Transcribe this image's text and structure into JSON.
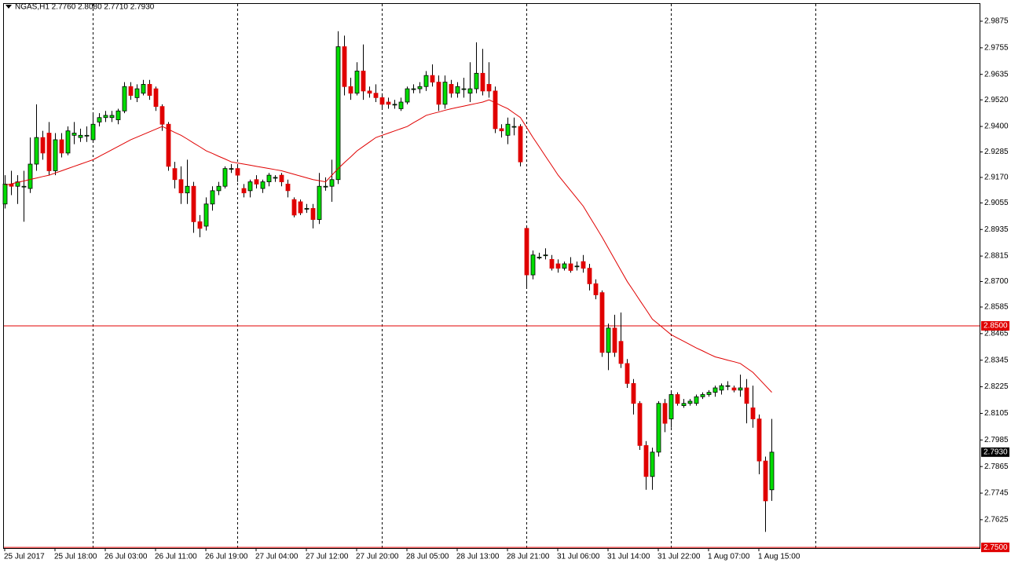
{
  "chart_data": {
    "type": "candlestick",
    "title": "NGAS,H1  2.7760 2.8080 2.7710 2.7930",
    "categories": [
      "25 Jul 2017",
      null,
      null,
      null,
      null,
      null,
      null,
      null,
      "25 Jul 18:00",
      null,
      null,
      null,
      null,
      null,
      null,
      null,
      "26 Jul 03:00",
      null,
      null,
      null,
      null,
      null,
      null,
      null,
      "26 Jul 11:00",
      null,
      null,
      null,
      null,
      null,
      null,
      null,
      "26 Jul 19:00",
      null,
      null,
      null,
      null,
      null,
      null,
      null,
      "27 Jul 04:00",
      null,
      null,
      null,
      null,
      null,
      null,
      null,
      "27 Jul 12:00",
      null,
      null,
      null,
      null,
      null,
      null,
      null,
      "27 Jul 20:00",
      null,
      null,
      null,
      null,
      null,
      null,
      null,
      "28 Jul 05:00",
      null,
      null,
      null,
      null,
      null,
      null,
      null,
      "28 Jul 13:00",
      null,
      null,
      null,
      null,
      null,
      null,
      null,
      "28 Jul 21:00",
      null,
      null,
      null,
      null,
      null,
      null,
      null,
      "31 Jul 06:00",
      null,
      null,
      null,
      null,
      null,
      null,
      null,
      "31 Jul 14:00",
      null,
      null,
      null,
      null,
      null,
      null,
      null,
      "31 Jul 22:00",
      null,
      null,
      null,
      null,
      null,
      null,
      null,
      "1 Aug 07:00",
      null,
      null,
      null,
      null,
      null,
      null,
      null,
      "1 Aug 15:00",
      null,
      null
    ],
    "open": [
      2.905,
      2.914,
      2.913,
      2.913,
      2.912,
      2.923,
      2.935,
      2.937,
      2.92,
      2.934,
      2.928,
      2.936,
      2.935,
      2.936,
      2.934,
      2.942,
      2.944,
      2.944,
      2.943,
      2.947,
      2.958,
      2.953,
      2.955,
      2.959,
      2.957,
      2.949,
      2.941,
      2.921,
      2.916,
      2.91,
      2.913,
      2.897,
      2.895,
      2.905,
      2.911,
      2.913,
      2.921,
      2.921,
      2.912,
      2.911,
      2.916,
      2.912,
      2.915,
      2.917,
      2.918,
      2.914,
      2.907,
      2.906,
      2.903,
      2.903,
      2.898,
      2.913,
      2.913,
      2.916,
      2.976,
      2.958,
      2.955,
      2.965,
      2.956,
      2.955,
      2.953,
      2.951,
      2.95,
      2.948,
      2.951,
      2.957,
      2.957,
      2.958,
      2.963,
      2.96,
      2.95,
      2.959,
      2.955,
      2.957,
      2.955,
      2.957,
      2.964,
      2.959,
      2.956,
      2.939,
      2.936,
      2.94,
      2.94,
      2.894,
      2.873,
      2.881,
      2.882,
      2.88,
      2.878,
      2.876,
      2.878,
      2.877,
      2.879,
      2.876,
      2.869,
      2.865,
      2.838,
      2.849,
      2.843,
      2.833,
      2.824,
      2.815,
      2.796,
      2.782,
      2.793,
      2.815,
      2.808,
      2.819,
      2.814,
      2.815,
      2.815,
      2.818,
      2.819,
      2.82,
      2.821,
      2.823,
      2.822,
      2.821,
      2.822,
      2.813,
      2.808,
      2.789,
      2.776
    ],
    "high": [
      2.918,
      2.92,
      2.918,
      2.92,
      2.935,
      2.95,
      2.938,
      2.942,
      2.937,
      2.937,
      2.94,
      2.942,
      2.939,
      2.94,
      2.946,
      2.946,
      2.947,
      2.947,
      2.948,
      2.96,
      2.96,
      2.959,
      2.961,
      2.961,
      2.958,
      2.95,
      2.942,
      2.924,
      2.922,
      2.925,
      2.915,
      2.9,
      2.908,
      2.913,
      2.915,
      2.922,
      2.923,
      2.922,
      2.914,
      2.916,
      2.918,
      2.916,
      2.919,
      2.918,
      2.919,
      2.916,
      2.908,
      2.907,
      2.905,
      2.905,
      2.919,
      2.917,
      2.925,
      2.983,
      2.981,
      2.962,
      2.969,
      2.977,
      2.958,
      2.959,
      2.955,
      2.953,
      2.952,
      2.953,
      2.958,
      2.959,
      2.96,
      2.965,
      2.968,
      2.963,
      2.963,
      2.961,
      2.96,
      2.962,
      2.969,
      2.978,
      2.975,
      2.969,
      2.958,
      2.941,
      2.944,
      2.944,
      2.941,
      2.895,
      2.884,
      2.883,
      2.885,
      2.882,
      2.88,
      2.879,
      2.881,
      2.879,
      2.882,
      2.878,
      2.871,
      2.866,
      2.851,
      2.855,
      2.856,
      2.835,
      2.826,
      2.816,
      2.798,
      2.795,
      2.816,
      2.817,
      2.82,
      2.82,
      2.817,
      2.817,
      2.819,
      2.82,
      2.821,
      2.823,
      2.824,
      2.825,
      2.823,
      2.828,
      2.826,
      2.823,
      2.81,
      2.791,
      2.808
    ],
    "low": [
      2.903,
      2.909,
      2.905,
      2.897,
      2.91,
      2.92,
      2.925,
      2.918,
      2.918,
      2.926,
      2.927,
      2.932,
      2.933,
      2.933,
      2.933,
      2.94,
      2.942,
      2.942,
      2.941,
      2.946,
      2.952,
      2.951,
      2.954,
      2.952,
      2.947,
      2.938,
      2.92,
      2.912,
      2.905,
      2.905,
      2.892,
      2.89,
      2.893,
      2.902,
      2.909,
      2.912,
      2.919,
      2.915,
      2.908,
      2.908,
      2.912,
      2.91,
      2.913,
      2.915,
      2.913,
      2.908,
      2.899,
      2.9,
      2.901,
      2.894,
      2.896,
      2.911,
      2.906,
      2.914,
      2.954,
      2.952,
      2.954,
      2.952,
      2.953,
      2.951,
      2.948,
      2.948,
      2.948,
      2.947,
      2.95,
      2.955,
      2.955,
      2.956,
      2.958,
      2.947,
      2.948,
      2.953,
      2.953,
      2.953,
      2.951,
      2.955,
      2.954,
      2.953,
      2.937,
      2.935,
      2.932,
      2.936,
      2.922,
      2.867,
      2.871,
      2.88,
      2.88,
      2.875,
      2.874,
      2.875,
      2.874,
      2.875,
      2.874,
      2.866,
      2.862,
      2.836,
      2.83,
      2.836,
      2.831,
      2.822,
      2.81,
      2.794,
      2.776,
      2.776,
      2.791,
      2.802,
      2.804,
      2.814,
      2.813,
      2.814,
      2.814,
      2.817,
      2.818,
      2.818,
      2.819,
      2.821,
      2.82,
      2.818,
      2.806,
      2.804,
      2.783,
      2.757,
      2.771
    ],
    "close": [
      2.914,
      2.913,
      2.915,
      2.913,
      2.923,
      2.935,
      2.928,
      2.92,
      2.934,
      2.928,
      2.938,
      2.937,
      2.936,
      2.936,
      2.941,
      2.944,
      2.945,
      2.945,
      2.947,
      2.958,
      2.954,
      2.957,
      2.959,
      2.954,
      2.949,
      2.941,
      2.922,
      2.916,
      2.91,
      2.913,
      2.897,
      2.894,
      2.905,
      2.911,
      2.913,
      2.921,
      2.921,
      2.918,
      2.91,
      2.915,
      2.914,
      2.915,
      2.918,
      2.917,
      2.915,
      2.911,
      2.9,
      2.901,
      2.903,
      2.898,
      2.913,
      2.913,
      2.916,
      2.976,
      2.958,
      2.955,
      2.965,
      2.956,
      2.955,
      2.953,
      2.95,
      2.95,
      2.95,
      2.951,
      2.957,
      2.957,
      2.958,
      2.963,
      2.96,
      2.95,
      2.96,
      2.955,
      2.958,
      2.957,
      2.957,
      2.964,
      2.956,
      2.956,
      2.939,
      2.938,
      2.941,
      2.94,
      2.924,
      2.873,
      2.882,
      2.881,
      2.882,
      2.876,
      2.876,
      2.878,
      2.875,
      2.877,
      2.876,
      2.869,
      2.864,
      2.838,
      2.849,
      2.838,
      2.833,
      2.824,
      2.815,
      2.796,
      2.782,
      2.793,
      2.815,
      2.806,
      2.819,
      2.815,
      2.815,
      2.816,
      2.818,
      2.819,
      2.82,
      2.822,
      2.823,
      2.823,
      2.821,
      2.822,
      2.815,
      2.808,
      2.789,
      2.771,
      2.793
    ],
    "up_color": "#00dd00",
    "down_color": "#e00000",
    "moving_average": {
      "color": "#e00000",
      "values": [
        2.9135,
        2.9141,
        2.9148,
        2.9154,
        2.9161,
        2.9167,
        2.9174,
        2.918,
        2.919,
        2.92,
        2.921,
        2.922,
        2.923,
        2.924,
        2.925,
        2.9265,
        2.928,
        2.9295,
        2.931,
        2.9325,
        2.934,
        2.9352,
        2.9364,
        2.9376,
        2.9388,
        2.94,
        2.9387,
        2.9373,
        2.936,
        2.9343,
        2.9325,
        2.9308,
        2.929,
        2.9278,
        2.9265,
        2.9253,
        2.924,
        2.9235,
        2.923,
        2.9225,
        2.922,
        2.9215,
        2.921,
        2.9205,
        2.92,
        2.9192,
        2.9184,
        2.9176,
        2.9168,
        2.916,
        2.9155,
        2.915,
        2.918,
        2.921,
        2.9237,
        2.9263,
        2.929,
        2.931,
        2.933,
        2.935,
        2.936,
        2.937,
        2.938,
        2.939,
        2.94,
        2.9417,
        2.9433,
        2.945,
        2.9458,
        2.9465,
        2.9473,
        2.948,
        2.9486,
        2.9492,
        2.9498,
        2.9504,
        2.951,
        2.952,
        2.9507,
        2.9493,
        2.948,
        2.946,
        2.944,
        2.9395,
        2.935,
        2.9308,
        2.9265,
        2.9223,
        2.918,
        2.9145,
        2.911,
        2.9075,
        2.904,
        2.8993,
        2.8947,
        2.89,
        2.885,
        2.88,
        2.875,
        2.87,
        2.8658,
        2.8615,
        2.8573,
        2.853,
        2.8507,
        2.8483,
        2.846,
        2.8445,
        2.843,
        2.8415,
        2.84,
        2.8387,
        2.8373,
        2.836,
        2.8353,
        2.8345,
        2.8338,
        2.833,
        2.831,
        2.829,
        2.826,
        2.823,
        2.82
      ]
    },
    "hlines": [
      {
        "value": 2.85,
        "label": "2.8500",
        "color": "#e00000"
      },
      {
        "value": 2.75,
        "label": "2.7500",
        "color": "#e00000"
      }
    ],
    "current_price": {
      "value": 2.793,
      "label": "2.7930",
      "color": "#000000"
    },
    "ylim": [
      2.7497,
      2.9953
    ],
    "yticks": [
      2.9875,
      2.9755,
      2.9635,
      {
        "value": 2.952,
        "label": "2.9520"
      },
      {
        "value": 2.94,
        "label": "2.9400"
      },
      2.9285,
      {
        "value": 2.917,
        "label": "2.9170"
      },
      2.9055,
      2.8935,
      2.8815,
      {
        "value": 2.87,
        "label": "2.8700"
      },
      2.8585,
      2.8465,
      2.8345,
      2.8225,
      2.8105,
      2.7985,
      2.7865,
      2.7745,
      2.7625
    ]
  }
}
